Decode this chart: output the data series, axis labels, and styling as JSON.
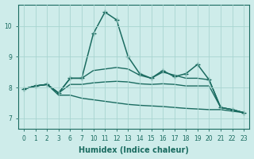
{
  "xlabel": "Humidex (Indice chaleur)",
  "background_color": "#ceecea",
  "grid_color": "#a8d5d0",
  "line_color": "#1a6b60",
  "tick_labels": [
    "0",
    "1",
    "2",
    "3",
    "6",
    "7",
    "10",
    "11",
    "12",
    "13",
    "14",
    "15",
    "16",
    "17",
    "18",
    "19",
    "20",
    "21",
    "22",
    "23"
  ],
  "y_ticks": [
    7,
    8,
    9,
    10
  ],
  "xlim": [
    -0.5,
    19.5
  ],
  "ylim": [
    6.65,
    10.7
  ],
  "lines": [
    {
      "x": [
        0,
        1,
        2,
        3,
        4,
        5,
        6,
        7,
        8,
        9,
        10,
        11,
        12,
        13,
        14,
        15,
        16,
        17,
        18,
        19
      ],
      "y": [
        7.95,
        8.05,
        8.1,
        7.82,
        8.3,
        8.3,
        9.75,
        10.45,
        10.2,
        9.0,
        8.45,
        8.3,
        8.55,
        8.35,
        8.45,
        8.75,
        8.25,
        7.35,
        7.28,
        7.18
      ],
      "marker": "+",
      "markersize": 4,
      "linewidth": 1.1
    },
    {
      "x": [
        0,
        1,
        2,
        3,
        4,
        5,
        6,
        7,
        8,
        9,
        10,
        11,
        12,
        13,
        14,
        15,
        16,
        17,
        18,
        19
      ],
      "y": [
        7.95,
        8.05,
        8.1,
        7.82,
        8.3,
        8.3,
        8.55,
        8.6,
        8.65,
        8.6,
        8.4,
        8.3,
        8.5,
        8.4,
        8.3,
        8.3,
        8.25,
        7.35,
        7.28,
        7.18
      ],
      "marker": null,
      "markersize": 0,
      "linewidth": 1.0
    },
    {
      "x": [
        0,
        1,
        2,
        3,
        4,
        5,
        6,
        7,
        8,
        9,
        10,
        11,
        12,
        13,
        14,
        15,
        16,
        17,
        18,
        19
      ],
      "y": [
        7.95,
        8.05,
        8.1,
        7.82,
        8.1,
        8.1,
        8.15,
        8.18,
        8.2,
        8.18,
        8.12,
        8.1,
        8.12,
        8.1,
        8.05,
        8.05,
        8.05,
        7.35,
        7.28,
        7.18
      ],
      "marker": null,
      "markersize": 0,
      "linewidth": 1.0
    },
    {
      "x": [
        0,
        1,
        2,
        3,
        4,
        5,
        6,
        7,
        8,
        9,
        10,
        11,
        12,
        13,
        14,
        15,
        16,
        17,
        18,
        19
      ],
      "y": [
        7.95,
        8.05,
        8.1,
        7.75,
        7.75,
        7.65,
        7.6,
        7.55,
        7.5,
        7.45,
        7.42,
        7.4,
        7.38,
        7.35,
        7.32,
        7.3,
        7.28,
        7.28,
        7.23,
        7.18
      ],
      "marker": null,
      "markersize": 0,
      "linewidth": 1.0
    }
  ]
}
